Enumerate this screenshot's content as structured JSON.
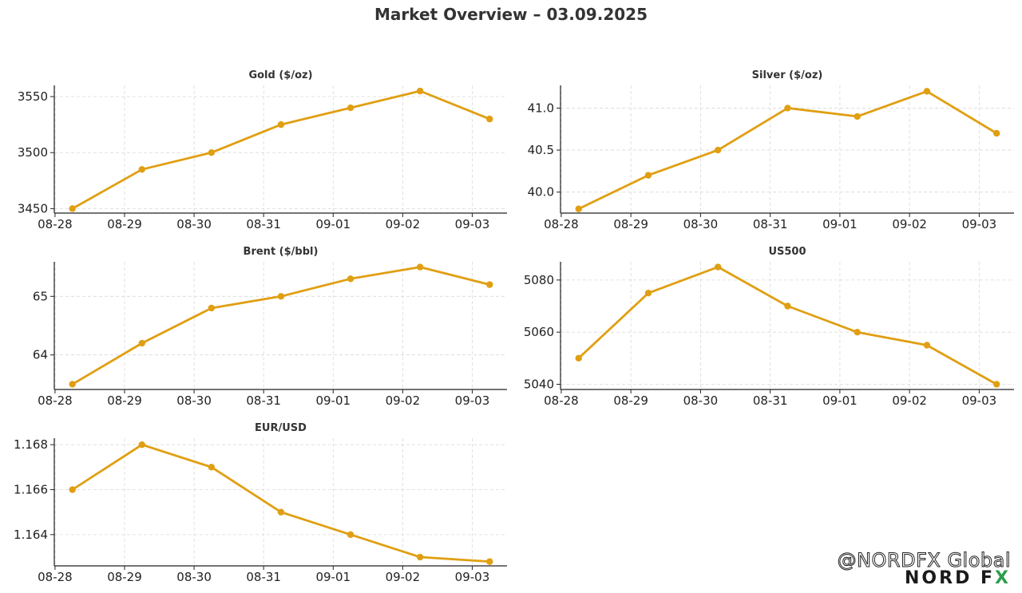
{
  "title": "Market Overview – 03.09.2025",
  "colors": {
    "line": "#E09F12",
    "grid": "#d9d9d9",
    "axis": "#222222",
    "text": "#333333"
  },
  "chart_data": [
    {
      "type": "line",
      "title": "Gold ($/oz)",
      "x": [
        "2025-08-28 06:00",
        "2025-08-29 06:00",
        "2025-08-30 06:00",
        "2025-08-31 06:00",
        "2025-09-01 06:00",
        "2025-09-02 06:00",
        "2025-09-03 06:00"
      ],
      "xticks": [
        "08-28",
        "08-29",
        "08-30",
        "08-31",
        "09-01",
        "09-02",
        "09-03"
      ],
      "values": [
        3450,
        3485,
        3500,
        3525,
        3540,
        3555,
        3530
      ],
      "ylim": [
        3446,
        3560
      ],
      "yticks": [
        3450,
        3500,
        3550
      ],
      "yticklabels": [
        "3450",
        "3500",
        "3550"
      ],
      "grid": true
    },
    {
      "type": "line",
      "title": "Silver ($/oz)",
      "x": [
        "2025-08-28 06:00",
        "2025-08-29 06:00",
        "2025-08-30 06:00",
        "2025-08-31 06:00",
        "2025-09-01 06:00",
        "2025-09-02 06:00",
        "2025-09-03 06:00"
      ],
      "xticks": [
        "08-28",
        "08-29",
        "08-30",
        "08-31",
        "09-01",
        "09-02",
        "09-03"
      ],
      "values": [
        39.8,
        40.2,
        40.5,
        41.0,
        40.9,
        41.2,
        40.7
      ],
      "ylim": [
        39.75,
        41.27
      ],
      "yticks": [
        40.0,
        40.5,
        41.0
      ],
      "yticklabels": [
        "40.0",
        "40.5",
        "41.0"
      ],
      "grid": true
    },
    {
      "type": "line",
      "title": "Brent ($/bbl)",
      "x": [
        "2025-08-28 06:00",
        "2025-08-29 06:00",
        "2025-08-30 06:00",
        "2025-08-31 06:00",
        "2025-09-01 06:00",
        "2025-09-02 06:00",
        "2025-09-03 06:00"
      ],
      "xticks": [
        "08-28",
        "08-29",
        "08-30",
        "08-31",
        "09-01",
        "09-02",
        "09-03"
      ],
      "values": [
        63.5,
        64.2,
        64.8,
        65.0,
        65.3,
        65.5,
        65.2
      ],
      "ylim": [
        63.41,
        65.59
      ],
      "yticks": [
        64,
        65
      ],
      "yticklabels": [
        "64",
        "65"
      ],
      "grid": true
    },
    {
      "type": "line",
      "title": "US500",
      "x": [
        "2025-08-28 06:00",
        "2025-08-29 06:00",
        "2025-08-30 06:00",
        "2025-08-31 06:00",
        "2025-09-01 06:00",
        "2025-09-02 06:00",
        "2025-09-03 06:00"
      ],
      "xticks": [
        "08-28",
        "08-29",
        "08-30",
        "08-31",
        "09-01",
        "09-02",
        "09-03"
      ],
      "values": [
        5050,
        5075,
        5085,
        5070,
        5060,
        5055,
        5040
      ],
      "ylim": [
        5038,
        5087
      ],
      "yticks": [
        5040,
        5060,
        5080
      ],
      "yticklabels": [
        "5040",
        "5060",
        "5080"
      ],
      "grid": true
    },
    {
      "type": "line",
      "title": "EUR/USD",
      "x": [
        "2025-08-28 06:00",
        "2025-08-29 06:00",
        "2025-08-30 06:00",
        "2025-08-31 06:00",
        "2025-09-01 06:00",
        "2025-09-02 06:00",
        "2025-09-03 06:00"
      ],
      "xticks": [
        "08-28",
        "08-29",
        "08-30",
        "08-31",
        "09-01",
        "09-02",
        "09-03"
      ],
      "values": [
        1.166,
        1.168,
        1.167,
        1.165,
        1.164,
        1.163,
        1.1628
      ],
      "ylim": [
        1.16261,
        1.16829
      ],
      "yticks": [
        1.164,
        1.166,
        1.168
      ],
      "yticklabels": [
        "1.164",
        "1.166",
        "1.168"
      ],
      "grid": true
    }
  ],
  "watermark": {
    "handle": "@NORDFX Global",
    "logo": "NORD FX"
  }
}
